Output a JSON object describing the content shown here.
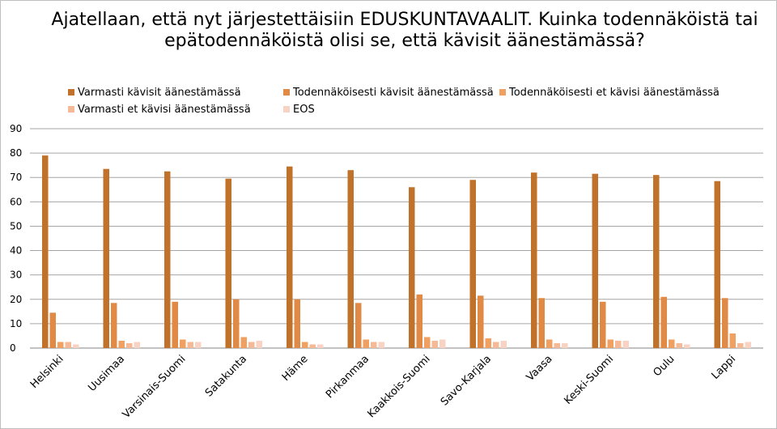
{
  "chart_data": {
    "type": "bar",
    "title": "Ajatellaan, että nyt järjestettäisiin EDUSKUNTAVAALIT. Kuinka todennäköistä tai epätodennäköistä olisi se, että kävisit äänestämässä?",
    "categories": [
      "Helsinki",
      "Uusimaa",
      "Varsinais-Suomi",
      "Satakunta",
      "Häme",
      "Pirkanmaa",
      "Kaakkois-Suomi",
      "Savo-Karjala",
      "Vaasa",
      "Keski-Suomi",
      "Oulu",
      "Lappi"
    ],
    "series": [
      {
        "name": "Varmasti kävisit äänestämässä",
        "color": "#c0712a",
        "values": [
          79,
          73.5,
          72.5,
          69.5,
          74.5,
          73,
          66,
          69,
          72,
          71.5,
          71,
          68.5
        ]
      },
      {
        "name": "Todennäköisesti kävisit äänestämässä",
        "color": "#e08a45",
        "values": [
          14.5,
          18.5,
          19,
          20,
          20,
          18.5,
          22,
          21.5,
          20.5,
          19,
          21,
          20.5
        ]
      },
      {
        "name": "Todennäköisesti et kävisi äänestämässä",
        "color": "#f0a060",
        "values": [
          2.5,
          3,
          3.5,
          4.5,
          2.5,
          3.5,
          4.5,
          4,
          3.5,
          3.5,
          3.5,
          6
        ]
      },
      {
        "name": "Varmasti et kävisi äänestämässä",
        "color": "#f5b996",
        "values": [
          2.5,
          2,
          2.5,
          2.5,
          1.5,
          2.5,
          3,
          2.5,
          2,
          3,
          2,
          2
        ]
      },
      {
        "name": "EOS",
        "color": "#f8d3c3",
        "values": [
          1.5,
          2.5,
          2.5,
          3,
          1.5,
          2.5,
          3.5,
          3,
          2,
          3,
          1.5,
          2.5
        ]
      }
    ],
    "ylim": [
      0,
      90
    ],
    "yticks": [
      0,
      10,
      20,
      30,
      40,
      50,
      60,
      70,
      80,
      90
    ],
    "xlabel": "",
    "ylabel": "",
    "grid": true,
    "legend_position": "top"
  }
}
